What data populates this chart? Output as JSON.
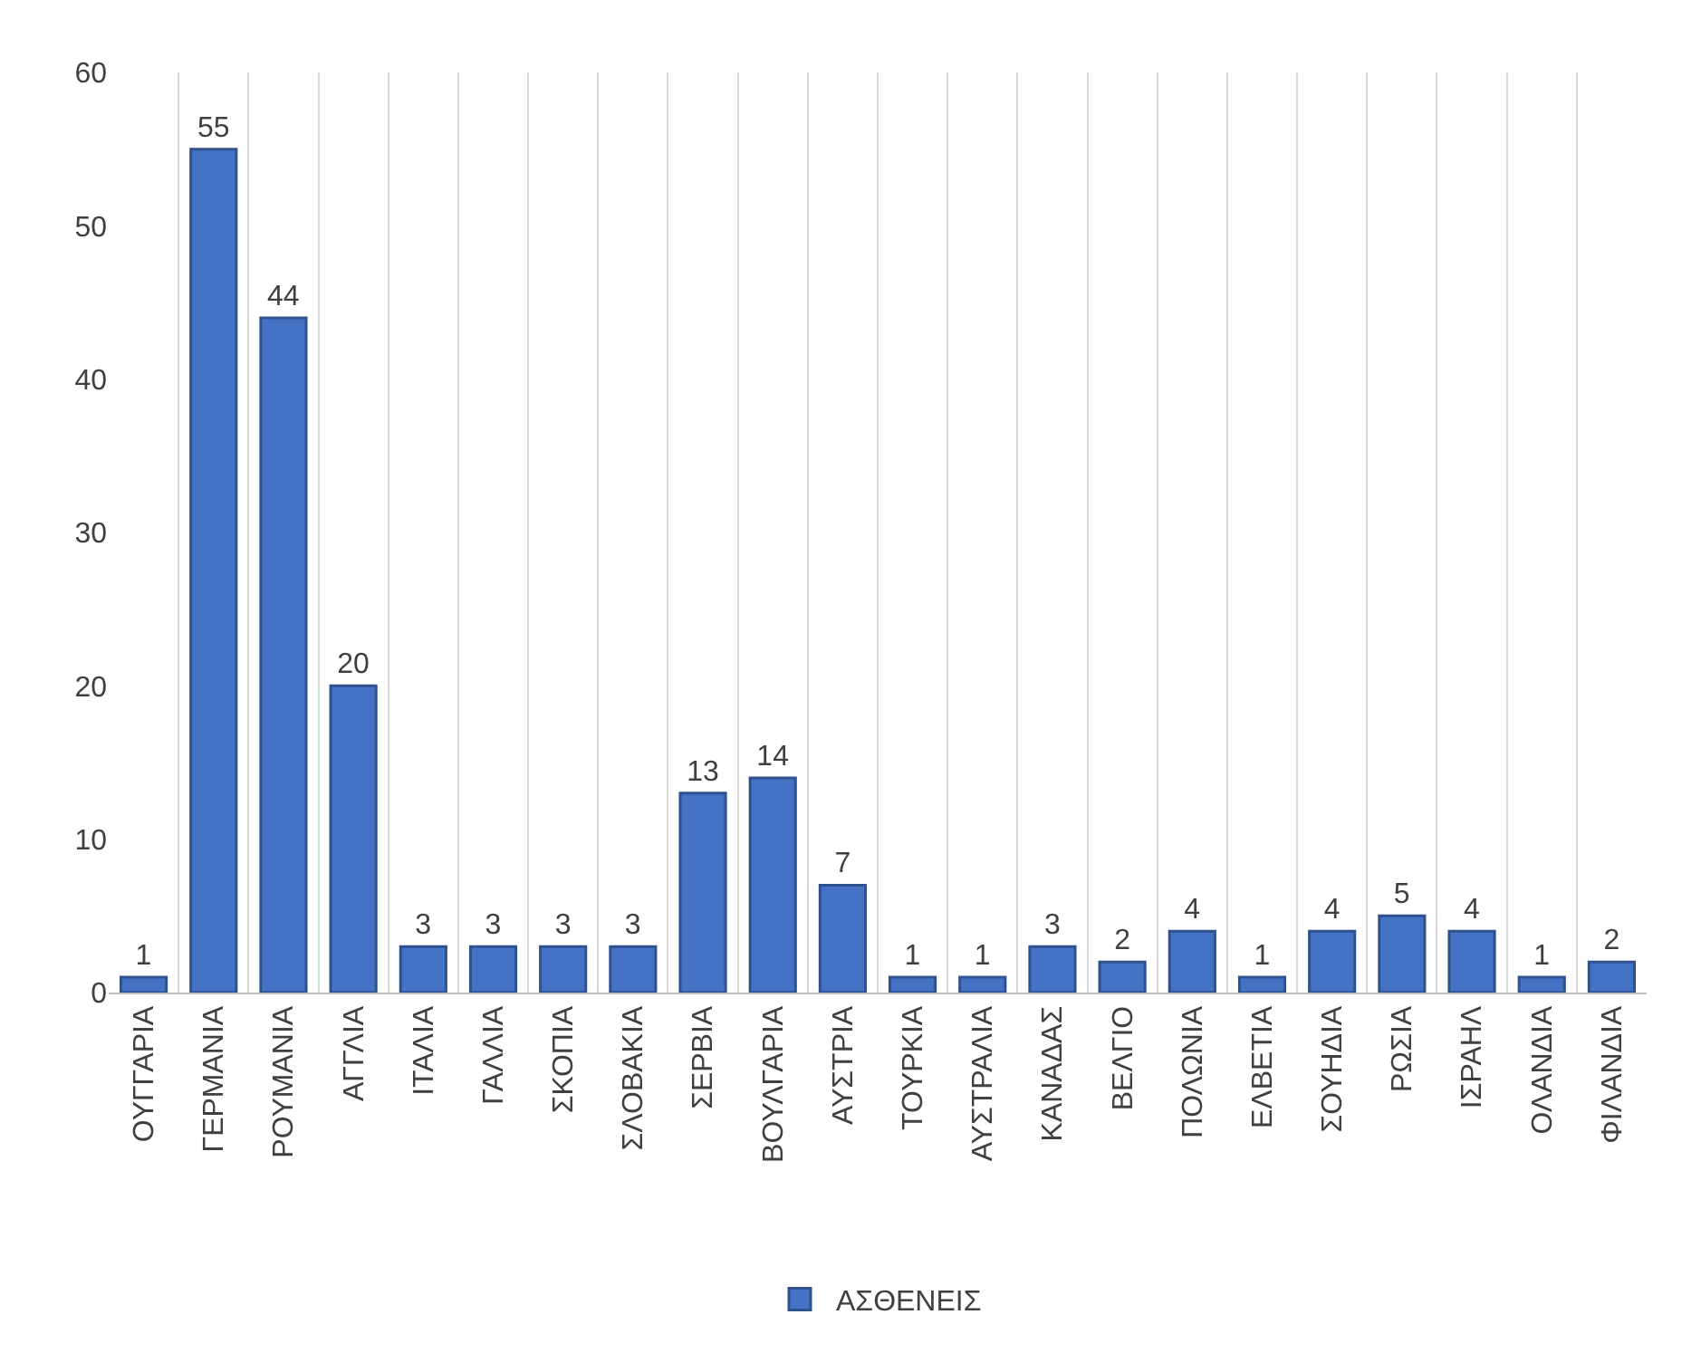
{
  "chart_data": {
    "type": "bar",
    "categories": [
      "ΟΥΓΓΑΡΙΑ",
      "ΓΕΡΜΑΝΙΑ",
      "ΡΟΥΜΑΝΙΑ",
      "ΑΓΓΛΙΑ",
      "ΙΤΑΛΙΑ",
      "ΓΑΛΛΙΑ",
      "ΣΚΟΠΙΑ",
      "ΣΛΟΒΑΚΙΑ",
      "ΣΕΡΒΙΑ",
      "ΒΟΥΛΓΑΡΙΑ",
      "ΑΥΣΤΡΙΑ",
      "ΤΟΥΡΚΙΑ",
      "ΑΥΣΤΡΑΛΙΑ",
      "ΚΑΝΑΔΑΣ",
      "ΒΕΛΓΙΟ",
      "ΠΟΛΩΝΙΑ",
      "ΕΛΒΕΤΙΑ",
      "ΣΟΥΗΔΙΑ",
      "ΡΩΣΙΑ",
      "ΙΣΡΑΗΛ",
      "ΟΛΑΝΔΙΑ",
      "ΦΙΛΑΝΔΙΑ"
    ],
    "series": [
      {
        "name": "ΑΣΘΕΝΕΙΣ",
        "color": "#4472c4",
        "values": [
          1,
          55,
          44,
          20,
          3,
          3,
          3,
          3,
          13,
          14,
          7,
          1,
          1,
          3,
          2,
          4,
          1,
          4,
          5,
          4,
          1,
          2
        ]
      }
    ],
    "ylim": [
      0,
      60
    ],
    "yticks": [
      0,
      10,
      20,
      30,
      40,
      50,
      60
    ],
    "grid": "x",
    "legend": "bottom",
    "data_labels": true
  }
}
